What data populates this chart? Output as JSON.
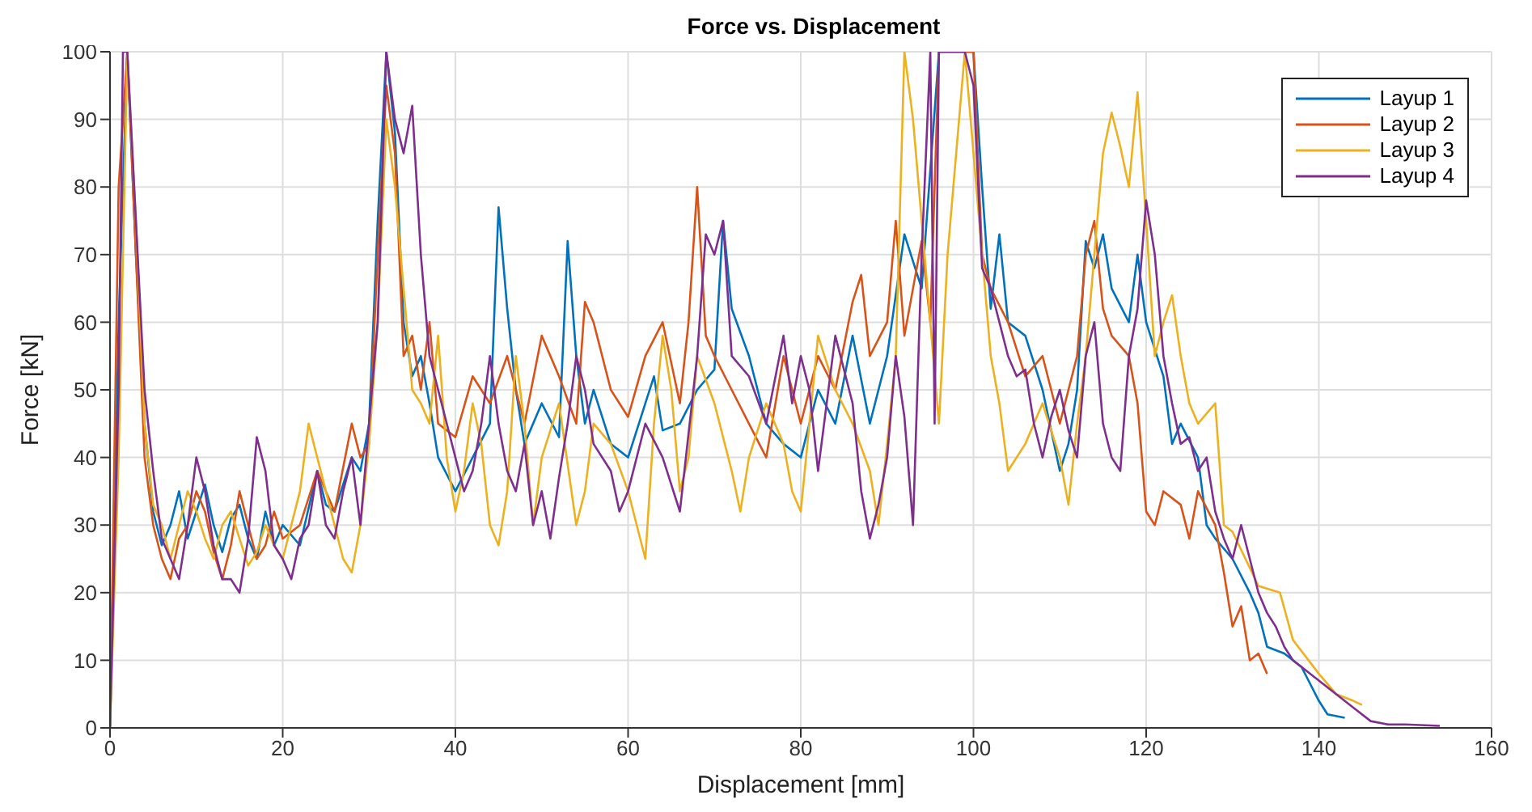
{
  "chart_data": {
    "type": "line",
    "title": "Force vs. Displacement",
    "xlabel": "Displacement [mm]",
    "ylabel": "Force [kN]",
    "xlim": [
      0,
      160
    ],
    "xticks": [
      0,
      20,
      40,
      60,
      80,
      100,
      120,
      140,
      160
    ],
    "ylim": [
      0,
      100
    ],
    "yticks": [
      0,
      10,
      20,
      30,
      40,
      50,
      60,
      70,
      80,
      90,
      100
    ],
    "grid": true,
    "legend": "top right",
    "line_style": "solid",
    "marker": "none",
    "series": [
      {
        "name": "Layup 1",
        "color": "#0072bd",
        "x": [
          0,
          1,
          2,
          3,
          4,
          5,
          6,
          7,
          8,
          9,
          10,
          11,
          12,
          13,
          14,
          15,
          16,
          17,
          18,
          19,
          20,
          22,
          24,
          25,
          26,
          28,
          29,
          30,
          31,
          32,
          33,
          34,
          35,
          36,
          37,
          38,
          40,
          42,
          44,
          45,
          46,
          47,
          48,
          50,
          52,
          53,
          54,
          55,
          56,
          58,
          60,
          62,
          63,
          64,
          66,
          68,
          70,
          71,
          72,
          74,
          76,
          78,
          80,
          82,
          84,
          86,
          88,
          90,
          92,
          94,
          96,
          97,
          100,
          101,
          102,
          103,
          104,
          106,
          108,
          110,
          111,
          112,
          113,
          114,
          115,
          116,
          118,
          119,
          120,
          122,
          123,
          124,
          126,
          127,
          128,
          130,
          132,
          133,
          134,
          136,
          138,
          140,
          141,
          143
        ],
        "values": [
          0,
          60,
          100,
          70,
          45,
          32,
          27,
          30,
          35,
          28,
          32,
          36,
          30,
          26,
          31,
          33,
          28,
          25,
          32,
          27,
          30,
          27,
          38,
          33,
          32,
          40,
          38,
          45,
          75,
          100,
          88,
          60,
          52,
          55,
          48,
          40,
          35,
          40,
          45,
          77,
          62,
          50,
          42,
          48,
          43,
          72,
          55,
          45,
          50,
          42,
          40,
          48,
          52,
          44,
          45,
          50,
          53,
          75,
          62,
          55,
          45,
          42,
          40,
          50,
          45,
          58,
          45,
          55,
          73,
          65,
          100,
          100,
          100,
          80,
          62,
          73,
          60,
          58,
          50,
          38,
          42,
          50,
          72,
          68,
          73,
          65,
          60,
          70,
          60,
          52,
          42,
          45,
          40,
          30,
          28,
          25,
          20,
          17,
          12,
          11,
          9,
          4,
          2,
          1.5
        ]
      },
      {
        "name": "Layup 2",
        "color": "#d95319",
        "x": [
          0,
          1,
          2,
          3,
          4,
          5,
          6,
          7,
          8,
          9,
          10,
          11,
          12,
          13,
          14,
          15,
          16,
          17,
          18,
          19,
          20,
          22,
          24,
          25,
          26,
          28,
          29,
          30,
          31,
          32,
          33,
          34,
          35,
          36,
          37,
          38,
          40,
          42,
          44,
          46,
          48,
          50,
          52,
          54,
          55,
          56,
          58,
          60,
          62,
          64,
          66,
          67,
          68,
          69,
          70,
          72,
          74,
          76,
          78,
          80,
          82,
          84,
          86,
          87,
          88,
          90,
          91,
          92,
          94,
          95,
          96,
          97,
          100,
          101,
          102,
          104,
          106,
          108,
          110,
          112,
          113,
          114,
          115,
          116,
          118,
          119,
          120,
          121,
          122,
          124,
          125,
          126,
          128,
          129,
          130,
          131,
          132,
          133,
          134
        ],
        "values": [
          0,
          80,
          100,
          70,
          40,
          30,
          25,
          22,
          28,
          30,
          35,
          32,
          26,
          22,
          27,
          35,
          30,
          25,
          27,
          32,
          28,
          30,
          38,
          35,
          32,
          45,
          40,
          42,
          70,
          95,
          85,
          55,
          58,
          50,
          60,
          45,
          43,
          52,
          48,
          55,
          45,
          58,
          52,
          45,
          63,
          60,
          50,
          46,
          55,
          60,
          48,
          60,
          80,
          58,
          55,
          50,
          45,
          40,
          55,
          45,
          55,
          50,
          63,
          67,
          55,
          60,
          75,
          58,
          72,
          60,
          100,
          100,
          100,
          70,
          65,
          60,
          52,
          55,
          45,
          55,
          70,
          75,
          62,
          58,
          55,
          48,
          32,
          30,
          35,
          33,
          28,
          35,
          30,
          23,
          15,
          18,
          10,
          11,
          8
        ]
      },
      {
        "name": "Layup 3",
        "color": "#edb120",
        "x": [
          0,
          1,
          2,
          3,
          4,
          5,
          6,
          7,
          8,
          9,
          10,
          11,
          12,
          13,
          14,
          15,
          16,
          17,
          18,
          19,
          20,
          21,
          22,
          23,
          24,
          25,
          26,
          27,
          28,
          29,
          30,
          31,
          32,
          33,
          34,
          35,
          36,
          37,
          38,
          39,
          40,
          41,
          42,
          43,
          44,
          45,
          46,
          47,
          48,
          49,
          50,
          52,
          54,
          55,
          56,
          58,
          60,
          61,
          62,
          63,
          64,
          65,
          66,
          67,
          68,
          70,
          72,
          73,
          74,
          76,
          78,
          79,
          80,
          82,
          84,
          86,
          88,
          89,
          90,
          91,
          92,
          93,
          94,
          95,
          96,
          97,
          99,
          101,
          102,
          103,
          104,
          106,
          108,
          110,
          111,
          112,
          113,
          114,
          115,
          116,
          117,
          118,
          119,
          120,
          121,
          122,
          123,
          124,
          125,
          126,
          128,
          129,
          130,
          133,
          135.5,
          137,
          140,
          142,
          144,
          145
        ],
        "values": [
          0,
          40,
          100,
          75,
          45,
          33,
          30,
          25,
          30,
          35,
          32,
          28,
          25,
          30,
          32,
          28,
          24,
          26,
          30,
          27,
          25,
          30,
          35,
          45,
          40,
          35,
          30,
          25,
          23,
          30,
          42,
          60,
          90,
          80,
          65,
          50,
          48,
          45,
          58,
          40,
          32,
          38,
          48,
          42,
          30,
          27,
          35,
          55,
          45,
          30,
          40,
          48,
          30,
          35,
          45,
          42,
          35,
          30,
          25,
          45,
          58,
          50,
          35,
          40,
          55,
          48,
          38,
          32,
          40,
          48,
          42,
          35,
          32,
          58,
          50,
          45,
          38,
          30,
          42,
          55,
          100,
          90,
          75,
          60,
          45,
          70,
          100,
          70,
          55,
          48,
          38,
          42,
          48,
          40,
          33,
          45,
          55,
          70,
          85,
          91,
          86,
          80,
          94,
          75,
          55,
          60,
          64,
          55,
          48,
          45,
          48,
          30,
          29,
          21,
          20,
          13,
          8,
          5,
          4,
          3.4
        ]
      },
      {
        "name": "Layup 4",
        "color": "#7e2f8e",
        "x": [
          0,
          1,
          1.5,
          2,
          3,
          4,
          5,
          6,
          7,
          8,
          9,
          10,
          11,
          12,
          13,
          14,
          15,
          16,
          17,
          18,
          19,
          20,
          21,
          22,
          23,
          24,
          25,
          26,
          27,
          28,
          29,
          30,
          31,
          32,
          33,
          34,
          35,
          36,
          37,
          38,
          39,
          40,
          41,
          42,
          43,
          44,
          45,
          46,
          47,
          48,
          49,
          50,
          51,
          52,
          53,
          54,
          55,
          56,
          58,
          59,
          60,
          62,
          64,
          66,
          68,
          69,
          70,
          71,
          72,
          74,
          76,
          78,
          79,
          80,
          81,
          82,
          84,
          86,
          87,
          88,
          89,
          90,
          91,
          92,
          93,
          94,
          95,
          95.5,
          96,
          99,
          100,
          101,
          102,
          103,
          104,
          105,
          106,
          107,
          108,
          109,
          110,
          111,
          112,
          113,
          114,
          115,
          116,
          117,
          118,
          119,
          120,
          121,
          122,
          123,
          124,
          125,
          126,
          127,
          128,
          129,
          130,
          131,
          132,
          133,
          134,
          135,
          136,
          137,
          138,
          140,
          142,
          144,
          146,
          148,
          150,
          154
        ],
        "values": [
          0,
          50,
          100,
          100,
          75,
          50,
          38,
          28,
          25,
          22,
          30,
          40,
          35,
          27,
          22,
          22,
          20,
          28,
          43,
          38,
          27,
          25,
          22,
          28,
          30,
          38,
          30,
          28,
          35,
          40,
          30,
          45,
          60,
          100,
          90,
          85,
          92,
          70,
          55,
          50,
          45,
          40,
          35,
          38,
          45,
          55,
          45,
          38,
          35,
          42,
          30,
          35,
          28,
          37,
          45,
          55,
          50,
          42,
          38,
          32,
          35,
          45,
          40,
          32,
          55,
          73,
          70,
          75,
          55,
          52,
          45,
          58,
          48,
          55,
          50,
          38,
          58,
          48,
          35,
          28,
          33,
          40,
          55,
          46,
          30,
          70,
          100,
          45,
          100,
          100,
          95,
          68,
          65,
          60,
          55,
          52,
          53,
          45,
          40,
          46,
          50,
          44,
          40,
          55,
          60,
          45,
          40,
          38,
          55,
          62,
          78,
          70,
          55,
          48,
          42,
          43,
          38,
          40,
          32,
          28,
          25,
          30,
          25,
          20,
          17,
          15,
          12,
          10,
          9,
          7,
          5,
          3,
          1,
          0.5,
          0.5,
          0.3
        ]
      }
    ]
  }
}
